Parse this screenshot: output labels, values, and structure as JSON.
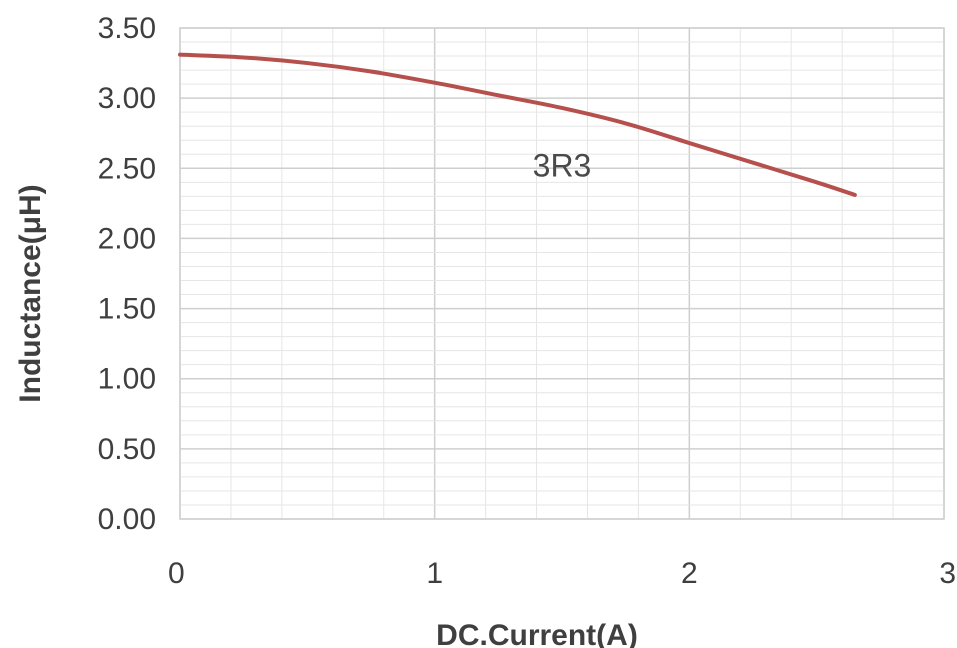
{
  "chart_data": {
    "type": "line",
    "title": "",
    "xlabel": "DC.Current(A)",
    "ylabel": "Inductance(μH)",
    "xlim": [
      0,
      3
    ],
    "ylim": [
      0,
      3.5
    ],
    "x_ticks": [
      "0",
      "1",
      "2",
      "3"
    ],
    "y_ticks": [
      "0.00",
      "0.50",
      "1.00",
      "1.50",
      "2.00",
      "2.50",
      "3.00",
      "3.50"
    ],
    "grid": true,
    "annotations": [
      {
        "text": "3R3",
        "x": 1.5,
        "y": 2.5
      }
    ],
    "series": [
      {
        "name": "3R3",
        "color": "#b5504c",
        "x": [
          0,
          0.25,
          0.5,
          0.75,
          1.0,
          1.25,
          1.5,
          1.75,
          2.0,
          2.25,
          2.5,
          2.65
        ],
        "y": [
          3.31,
          3.29,
          3.25,
          3.19,
          3.11,
          3.02,
          2.93,
          2.82,
          2.68,
          2.54,
          2.4,
          2.31
        ]
      }
    ]
  }
}
